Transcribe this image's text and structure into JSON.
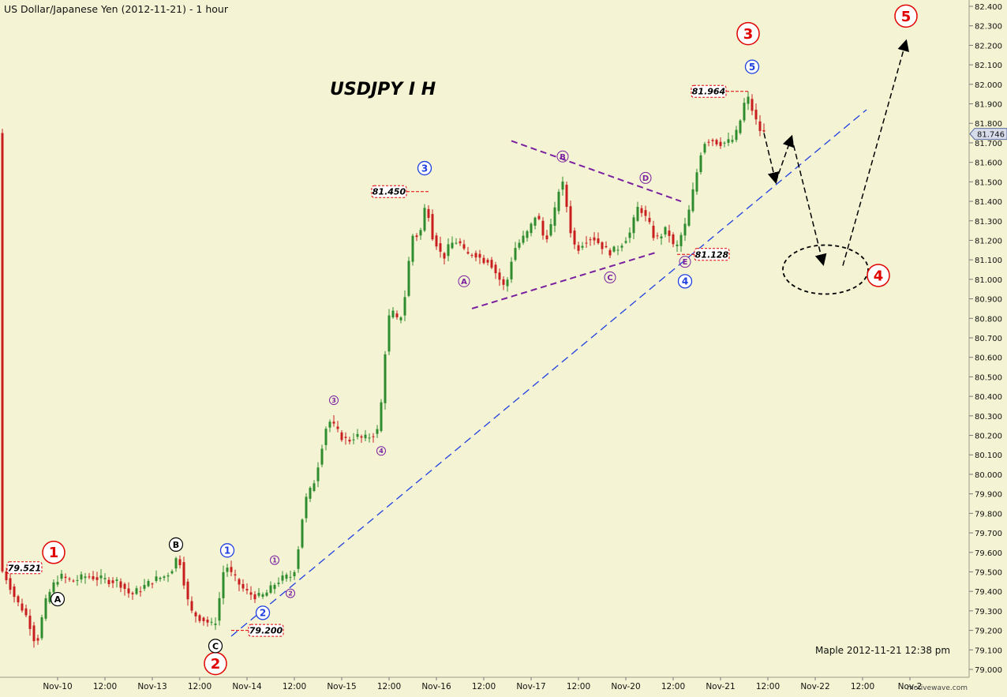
{
  "header": {
    "title": "US Dollar/Japanese Yen (2012-11-21) - 1 hour"
  },
  "footer": {
    "watermark": "motivewave.com"
  },
  "colors": {
    "background": "#f4f4d4",
    "up_candle": "#2e8b2e",
    "down_candle": "#c81e1e",
    "red_marker": "#e00000",
    "blue": "#1f3fe0",
    "purple": "#7a1fa0",
    "black": "#000000",
    "label_border": "#e00000"
  },
  "chart_data": {
    "type": "candlestick",
    "title": "USDJPY  I H",
    "subtitle": "Maple  2012-11-21  12:38 pm",
    "y_axis": {
      "range": [
        79.0,
        82.4
      ],
      "ticks": [
        "79.000",
        "79.100",
        "79.200",
        "79.300",
        "79.400",
        "79.500",
        "79.600",
        "79.700",
        "79.800",
        "79.900",
        "80.000",
        "80.100",
        "80.200",
        "80.300",
        "80.400",
        "80.500",
        "80.600",
        "80.700",
        "80.800",
        "80.900",
        "81.000",
        "81.100",
        "81.200",
        "81.300",
        "81.400",
        "81.500",
        "81.600",
        "81.700",
        "81.800",
        "81.900",
        "82.000",
        "82.100",
        "82.200",
        "82.300",
        "82.400"
      ],
      "current_price": "81.746"
    },
    "x_axis": {
      "ticks": [
        {
          "label": "Nov-10",
          "t": 14
        },
        {
          "label": "12:00",
          "t": 26
        },
        {
          "label": "Nov-13",
          "t": 38
        },
        {
          "label": "12:00",
          "t": 50
        },
        {
          "label": "Nov-14",
          "t": 62
        },
        {
          "label": "12:00",
          "t": 74
        },
        {
          "label": "Nov-15",
          "t": 86
        },
        {
          "label": "12:00",
          "t": 98
        },
        {
          "label": "Nov-16",
          "t": 110
        },
        {
          "label": "12:00",
          "t": 122
        },
        {
          "label": "Nov-17",
          "t": 134
        },
        {
          "label": "12:00",
          "t": 146
        },
        {
          "label": "Nov-20",
          "t": 158
        },
        {
          "label": "12:00",
          "t": 170
        },
        {
          "label": "Nov-21",
          "t": 182
        },
        {
          "label": "12:00",
          "t": 194
        },
        {
          "label": "Nov-22",
          "t": 206
        },
        {
          "label": "12:00",
          "t": 218
        },
        {
          "label": "Nov-2",
          "t": 230
        }
      ]
    },
    "price_path": [
      [
        0,
        79.52
      ],
      [
        2,
        79.45
      ],
      [
        4,
        79.35
      ],
      [
        6,
        79.3
      ],
      [
        8,
        79.2
      ],
      [
        9,
        79.12
      ],
      [
        10,
        79.2
      ],
      [
        11,
        79.32
      ],
      [
        13,
        79.42
      ],
      [
        15,
        79.48
      ],
      [
        18,
        79.45
      ],
      [
        22,
        79.48
      ],
      [
        26,
        79.46
      ],
      [
        30,
        79.45
      ],
      [
        33,
        79.38
      ],
      [
        36,
        79.42
      ],
      [
        39,
        79.46
      ],
      [
        42,
        79.48
      ],
      [
        44,
        79.53
      ],
      [
        45,
        79.6
      ],
      [
        46,
        79.5
      ],
      [
        47,
        79.4
      ],
      [
        48,
        79.3
      ],
      [
        50,
        79.27
      ],
      [
        52,
        79.25
      ],
      [
        54,
        79.22
      ],
      [
        55,
        79.28
      ],
      [
        56,
        79.45
      ],
      [
        57,
        79.55
      ],
      [
        58,
        79.5
      ],
      [
        60,
        79.45
      ],
      [
        62,
        79.4
      ],
      [
        64,
        79.38
      ],
      [
        66,
        79.37
      ],
      [
        68,
        79.4
      ],
      [
        70,
        79.45
      ],
      [
        72,
        79.47
      ],
      [
        74,
        79.48
      ],
      [
        75,
        79.55
      ],
      [
        76,
        79.7
      ],
      [
        77,
        79.85
      ],
      [
        78,
        79.9
      ],
      [
        79,
        79.93
      ],
      [
        80,
        80.0
      ],
      [
        81,
        80.1
      ],
      [
        82,
        80.2
      ],
      [
        83,
        80.28
      ],
      [
        84,
        80.26
      ],
      [
        86,
        80.2
      ],
      [
        88,
        80.17
      ],
      [
        90,
        80.2
      ],
      [
        92,
        80.18
      ],
      [
        94,
        80.2
      ],
      [
        96,
        80.23
      ],
      [
        97,
        80.5
      ],
      [
        98,
        80.76
      ],
      [
        99,
        80.85
      ],
      [
        100,
        80.8
      ],
      [
        101,
        80.78
      ],
      [
        102,
        80.85
      ],
      [
        103,
        80.98
      ],
      [
        104,
        81.2
      ],
      [
        105,
        81.25
      ],
      [
        106,
        81.2
      ],
      [
        107,
        81.3
      ],
      [
        108,
        81.42
      ],
      [
        109,
        81.25
      ],
      [
        110,
        81.2
      ],
      [
        111,
        81.17
      ],
      [
        112,
        81.1
      ],
      [
        114,
        81.18
      ],
      [
        116,
        81.2
      ],
      [
        118,
        81.12
      ],
      [
        120,
        81.14
      ],
      [
        122,
        81.1
      ],
      [
        124,
        81.1
      ],
      [
        125,
        81.05
      ],
      [
        126,
        81.02
      ],
      [
        127,
        80.98
      ],
      [
        128,
        80.95
      ],
      [
        129,
        81.05
      ],
      [
        130,
        81.15
      ],
      [
        132,
        81.2
      ],
      [
        134,
        81.25
      ],
      [
        135,
        81.3
      ],
      [
        136,
        81.35
      ],
      [
        137,
        81.25
      ],
      [
        138,
        81.2
      ],
      [
        140,
        81.3
      ],
      [
        141,
        81.4
      ],
      [
        142,
        81.52
      ],
      [
        143,
        81.45
      ],
      [
        144,
        81.3
      ],
      [
        145,
        81.2
      ],
      [
        146,
        81.15
      ],
      [
        148,
        81.2
      ],
      [
        150,
        81.22
      ],
      [
        152,
        81.18
      ],
      [
        154,
        81.14
      ],
      [
        156,
        81.15
      ],
      [
        158,
        81.2
      ],
      [
        160,
        81.25
      ],
      [
        161,
        81.35
      ],
      [
        162,
        81.38
      ],
      [
        163,
        81.33
      ],
      [
        164,
        81.3
      ],
      [
        165,
        81.25
      ],
      [
        166,
        81.2
      ],
      [
        167,
        81.22
      ],
      [
        168,
        81.24
      ],
      [
        169,
        81.26
      ],
      [
        170,
        81.2
      ],
      [
        171,
        81.14
      ],
      [
        172,
        81.2
      ],
      [
        173,
        81.25
      ],
      [
        174,
        81.3
      ],
      [
        175,
        81.4
      ],
      [
        176,
        81.5
      ],
      [
        177,
        81.6
      ],
      [
        178,
        81.7
      ],
      [
        180,
        81.72
      ],
      [
        182,
        81.7
      ],
      [
        184,
        81.7
      ],
      [
        186,
        81.72
      ],
      [
        187,
        81.78
      ],
      [
        188,
        81.85
      ],
      [
        189,
        81.95
      ],
      [
        190,
        81.9
      ],
      [
        191,
        81.84
      ],
      [
        192,
        81.78
      ],
      [
        193,
        81.75
      ]
    ],
    "price_labels": [
      {
        "text": "79.521",
        "t": 6,
        "p": 79.521
      },
      {
        "text": "79.200",
        "t": 58,
        "p": 79.2
      },
      {
        "text": "81.450",
        "t": 108,
        "p": 81.45
      },
      {
        "text": "81.128",
        "t": 171,
        "p": 81.128
      },
      {
        "text": "81.964",
        "t": 189,
        "p": 81.964
      }
    ],
    "wave_labels": [
      {
        "text": "1",
        "style": "red",
        "t": 13,
        "p": 79.6
      },
      {
        "text": "2",
        "style": "red",
        "t": 54,
        "p": 79.03
      },
      {
        "text": "3",
        "style": "red",
        "t": 189,
        "p": 82.26
      },
      {
        "text": "4",
        "style": "red",
        "t": 222,
        "p": 81.02
      },
      {
        "text": "5",
        "style": "red",
        "t": 229,
        "p": 82.35
      },
      {
        "text": "A",
        "style": "black",
        "t": 14,
        "p": 79.36
      },
      {
        "text": "B",
        "style": "black",
        "t": 44,
        "p": 79.64
      },
      {
        "text": "C",
        "style": "black",
        "t": 54,
        "p": 79.12
      },
      {
        "text": "1",
        "style": "blue",
        "t": 57,
        "p": 79.61
      },
      {
        "text": "2",
        "style": "blue",
        "t": 66,
        "p": 79.29
      },
      {
        "text": "3",
        "style": "blue",
        "t": 107,
        "p": 81.57
      },
      {
        "text": "4",
        "style": "blue",
        "t": 173,
        "p": 80.99
      },
      {
        "text": "5",
        "style": "blue",
        "t": 190,
        "p": 82.09
      },
      {
        "text": "1",
        "style": "purple-small",
        "t": 69,
        "p": 79.56
      },
      {
        "text": "2",
        "style": "purple-small",
        "t": 73,
        "p": 79.39
      },
      {
        "text": "3",
        "style": "purple-small",
        "t": 84,
        "p": 80.38
      },
      {
        "text": "4",
        "style": "purple-small",
        "t": 96,
        "p": 80.12
      },
      {
        "text": "A",
        "style": "purple",
        "t": 117,
        "p": 80.99
      },
      {
        "text": "B",
        "style": "purple",
        "t": 142,
        "p": 81.63
      },
      {
        "text": "C",
        "style": "purple",
        "t": 154,
        "p": 81.01
      },
      {
        "text": "D",
        "style": "purple",
        "t": 163,
        "p": 81.52
      },
      {
        "text": "E",
        "style": "purple",
        "t": 173,
        "p": 81.09
      }
    ],
    "trend_lines": [
      {
        "color": "blue",
        "dashed": true,
        "t1": 58,
        "p1": 79.17,
        "t2": 219,
        "p2": 81.87
      },
      {
        "color": "purple",
        "dashed": true,
        "t1": 129,
        "p1": 81.71,
        "t2": 172,
        "p2": 81.4
      },
      {
        "color": "purple",
        "dashed": true,
        "t1": 119,
        "p1": 80.85,
        "t2": 166,
        "p2": 81.14
      }
    ],
    "projection_path": [
      {
        "t": 193,
        "p": 81.75
      },
      {
        "t": 196,
        "p": 81.5
      },
      {
        "t": 200,
        "p": 81.73
      },
      {
        "t": 208,
        "p": 81.08
      },
      {
        "t": 213,
        "p": 81.07
      },
      {
        "t": 229,
        "p": 82.22
      }
    ],
    "target_zone": {
      "t": 208,
      "p": 81.05
    },
    "grid": false
  }
}
